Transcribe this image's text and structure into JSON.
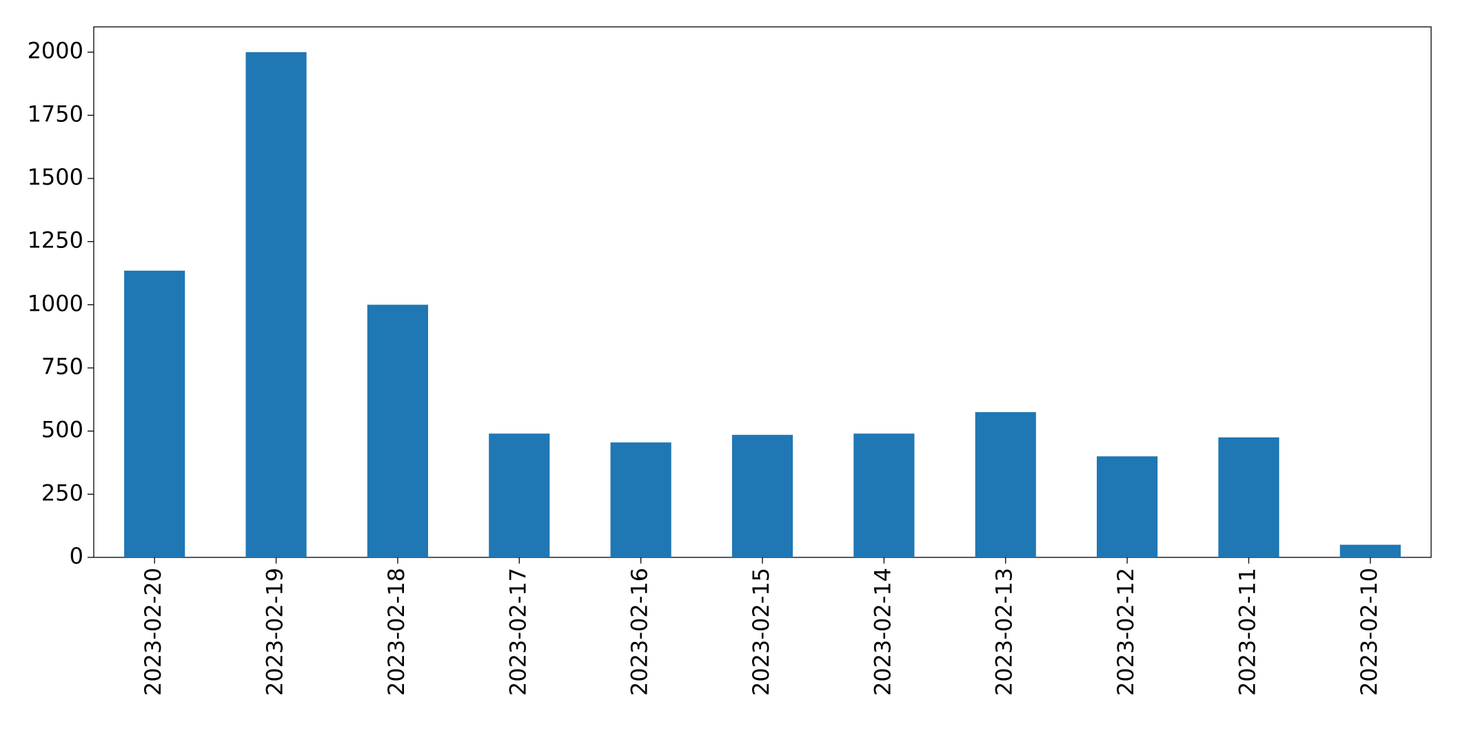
{
  "chart_data": {
    "type": "bar",
    "categories": [
      "2023-02-20",
      "2023-02-19",
      "2023-02-18",
      "2023-02-17",
      "2023-02-16",
      "2023-02-15",
      "2023-02-14",
      "2023-02-13",
      "2023-02-12",
      "2023-02-11",
      "2023-02-10"
    ],
    "values": [
      1135,
      2000,
      1000,
      490,
      455,
      485,
      490,
      575,
      400,
      475,
      50
    ],
    "color": "#1f77b4",
    "ylim": [
      0,
      2100
    ],
    "yticks": [
      0,
      250,
      500,
      750,
      1000,
      1250,
      1500,
      1750,
      2000
    ],
    "grid": false
  }
}
